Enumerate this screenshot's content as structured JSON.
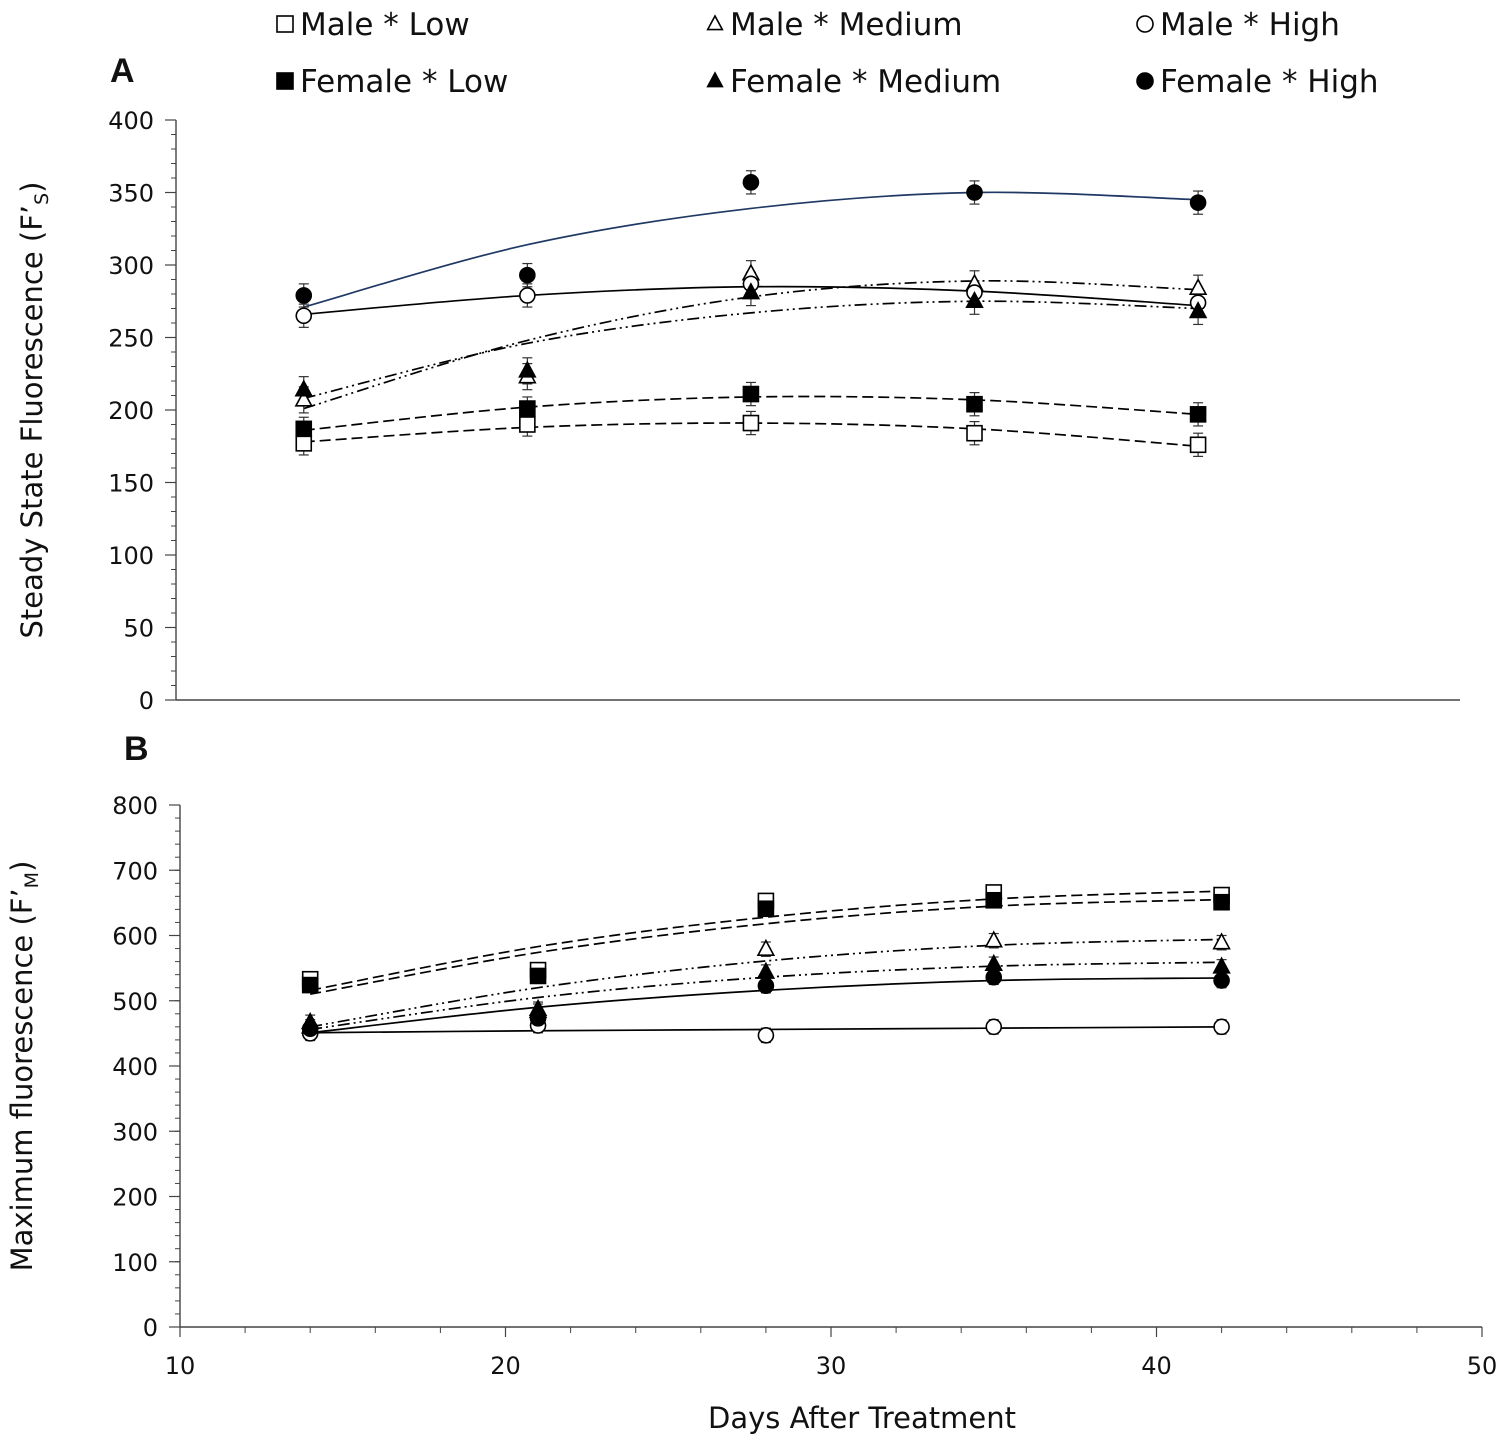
{
  "legend": [
    {
      "key": "male_low",
      "label": "Male * Low",
      "marker": "square",
      "filled": false
    },
    {
      "key": "male_med",
      "label": "Male * Medium",
      "marker": "triangle",
      "filled": false
    },
    {
      "key": "male_high",
      "label": "Male * High",
      "marker": "circle",
      "filled": false
    },
    {
      "key": "fem_low",
      "label": "Female * Low",
      "marker": "square",
      "filled": true
    },
    {
      "key": "fem_med",
      "label": "Female * Medium",
      "marker": "triangle",
      "filled": true
    },
    {
      "key": "fem_high",
      "label": "Female * High",
      "marker": "circle",
      "filled": true
    }
  ],
  "shared_xlabel": "Days After Treatment",
  "chart_data": [
    {
      "type": "scatter",
      "panel": "A",
      "ylabel": "Steady State Fluorescence (F’",
      "ylabel_sub": "S",
      "ylabel_close": ")",
      "xlim": [
        10,
        50
      ],
      "ylim": [
        0,
        400
      ],
      "yticks": [
        0,
        50,
        100,
        150,
        200,
        250,
        300,
        350,
        400
      ],
      "x": [
        14,
        21,
        28,
        35,
        42
      ],
      "series": [
        {
          "key": "male_low",
          "name": "Male * Low",
          "values": [
            177,
            190,
            191,
            184,
            176
          ],
          "err": 8,
          "fit": [
            178,
            188,
            191,
            187,
            175
          ],
          "line": "dashed",
          "line_color": "#000000"
        },
        {
          "key": "fem_low",
          "name": "Female * Low",
          "values": [
            187,
            201,
            211,
            204,
            197
          ],
          "err": 8,
          "fit": [
            186,
            202,
            209,
            207,
            197
          ],
          "line": "dashed",
          "line_color": "#000000"
        },
        {
          "key": "male_med",
          "name": "Male * Medium",
          "values": [
            207,
            223,
            294,
            287,
            284
          ],
          "err": 9,
          "fit": [
            201,
            248,
            278,
            289,
            283
          ],
          "line": "dashdotdot",
          "line_color": "#000000"
        },
        {
          "key": "fem_med",
          "name": "Female * Medium",
          "values": [
            214,
            227,
            281,
            275,
            268
          ],
          "err": 9,
          "fit": [
            208,
            246,
            267,
            275,
            270
          ],
          "line": "dashdotdot",
          "line_color": "#000000"
        },
        {
          "key": "male_high",
          "name": "Male * High",
          "values": [
            265,
            279,
            287,
            281,
            274
          ],
          "err": 8,
          "fit": [
            266,
            279,
            285,
            282,
            272
          ],
          "line": "solid",
          "line_color": "#000000"
        },
        {
          "key": "fem_high",
          "name": "Female * High",
          "values": [
            279,
            293,
            357,
            350,
            343
          ],
          "err": 8,
          "fit": [
            271,
            314,
            339,
            350,
            345
          ],
          "line": "solid",
          "line_color": "#1f3864"
        }
      ]
    },
    {
      "type": "scatter",
      "panel": "B",
      "ylabel": "Maximum fluorescence (F’",
      "ylabel_sub": "M",
      "ylabel_close": ")",
      "xlabel": "Days After Treatment",
      "xlim": [
        10,
        50
      ],
      "ylim": [
        0,
        800
      ],
      "yticks": [
        0,
        100,
        200,
        300,
        400,
        500,
        600,
        700,
        800
      ],
      "xticks": [
        10,
        20,
        30,
        40,
        50
      ],
      "x": [
        14,
        21,
        28,
        35,
        42
      ],
      "series": [
        {
          "key": "male_low",
          "name": "Male * Low",
          "values": [
            533,
            547,
            653,
            666,
            662
          ],
          "err": 11,
          "fit": [
            516,
            583,
            628,
            656,
            668
          ],
          "line": "dashed",
          "line_color": "#000000"
        },
        {
          "key": "fem_low",
          "name": "Female * Low",
          "values": [
            524,
            538,
            641,
            654,
            651
          ],
          "err": 11,
          "fit": [
            510,
            574,
            618,
            645,
            655
          ],
          "line": "dashed",
          "line_color": "#000000"
        },
        {
          "key": "male_med",
          "name": "Male * Medium",
          "values": [
            460,
            484,
            579,
            592,
            589
          ],
          "err": 11,
          "fit": [
            460,
            520,
            561,
            585,
            594
          ],
          "line": "dashdotdot",
          "line_color": "#000000"
        },
        {
          "key": "fem_med",
          "name": "Female * Medium",
          "values": [
            467,
            487,
            544,
            556,
            552
          ],
          "err": 11,
          "fit": [
            456,
            505,
            536,
            553,
            559
          ],
          "line": "dashdotdot",
          "line_color": "#000000"
        },
        {
          "key": "male_high",
          "name": "Male * High",
          "values": [
            450,
            462,
            447,
            460,
            460
          ],
          "err": 11,
          "fit": [
            451,
            454,
            456,
            458,
            460
          ],
          "line": "solid",
          "line_color": "#000000"
        },
        {
          "key": "fem_high",
          "name": "Female * High",
          "values": [
            457,
            473,
            523,
            536,
            531
          ],
          "err": 11,
          "fit": [
            451,
            490,
            516,
            531,
            535
          ],
          "line": "solid",
          "line_color": "#000000"
        }
      ]
    }
  ]
}
